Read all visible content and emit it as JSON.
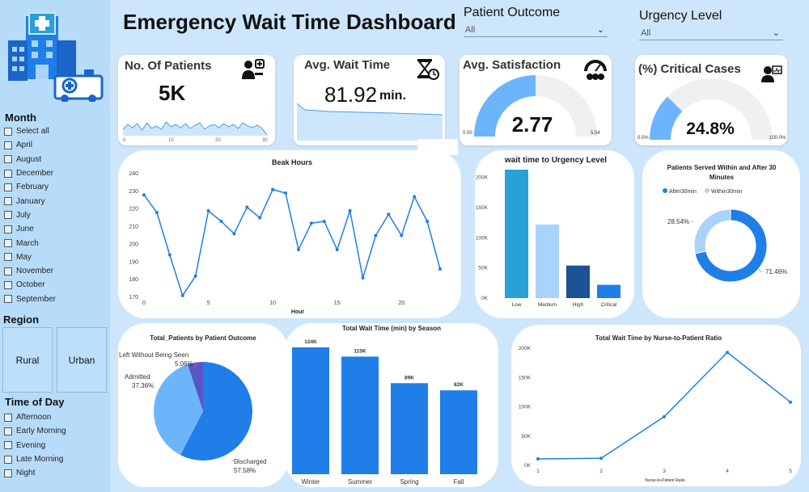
{
  "app": {
    "title": "Emergency Wait Time Dashboard"
  },
  "filters": {
    "patient_outcome": {
      "label": "Patient Outcome",
      "value": "All"
    },
    "urgency_level": {
      "label": "Urgency Level",
      "value": "All"
    }
  },
  "sidebar": {
    "month": {
      "title": "Month",
      "items": [
        "Select all",
        "April",
        "August",
        "December",
        "February",
        "January",
        "July",
        "June",
        "March",
        "May",
        "November",
        "October",
        "September"
      ]
    },
    "region": {
      "title": "Region",
      "items": [
        "Rural",
        "Urban"
      ]
    },
    "time_of_day": {
      "title": "Time of Day",
      "items": [
        "Afternoon",
        "Early Morning",
        "Evening",
        "Late Morning",
        "Night"
      ]
    }
  },
  "kpis": {
    "patients": {
      "label": "No. Of Patients",
      "value": "5K",
      "ticks": [
        "0",
        "10",
        "20",
        "30"
      ]
    },
    "wait_time": {
      "label": "Avg. Wait Time",
      "value": "81.92",
      "unit": "min."
    },
    "satisfaction": {
      "label": "Avg. Satisfaction",
      "value": "2.77",
      "min_label": "0.00",
      "max_label": "5.54",
      "fraction": 0.5
    },
    "critical": {
      "label": "(%) Critical Cases",
      "value": "24.8%",
      "min_label": "0.0%",
      "max_label": "100.0%",
      "fraction": 0.248
    }
  },
  "colors": {
    "blue_main": "#1f7ee8",
    "blue_light": "#6cb5fb",
    "blue_pale": "#a9d3fb",
    "navy": "#1b5394",
    "cyan": "#2aa0d8",
    "purple": "#5856c7",
    "gray": "#f0f0f0"
  },
  "chart_data": [
    {
      "id": "peak_hours",
      "type": "line",
      "title": "Beak Hours",
      "xlabel": "Hour",
      "ylabel": "",
      "x": [
        0,
        1,
        2,
        3,
        4,
        5,
        6,
        7,
        8,
        9,
        10,
        11,
        12,
        13,
        14,
        15,
        16,
        17,
        18,
        19,
        20,
        21,
        22,
        23
      ],
      "values": [
        228,
        218,
        194,
        171,
        182,
        219,
        213,
        206,
        221,
        215,
        231,
        229,
        197,
        212,
        213,
        197,
        219,
        181,
        205,
        217,
        205,
        227,
        213,
        186
      ],
      "ylim": [
        170,
        240
      ],
      "yticks": [
        "170",
        "180",
        "190",
        "200",
        "210",
        "220",
        "230",
        "240"
      ],
      "xticks": [
        "0",
        "5",
        "10",
        "15",
        "20"
      ]
    },
    {
      "id": "urgency",
      "type": "bar",
      "title": "wait time to Urgency Level",
      "categories": [
        "Low",
        "Medium",
        "High",
        "Critical"
      ],
      "values": [
        213000,
        122000,
        54000,
        22000
      ],
      "ylim": [
        0,
        225000
      ],
      "yticks": [
        "0K",
        "50K",
        "100K",
        "150K",
        "200K"
      ]
    },
    {
      "id": "served30",
      "type": "pie",
      "title": "Patients Served Within and After 30 Minutes",
      "legend": [
        "After30min",
        "Within30min"
      ],
      "values": [
        71.46,
        28.54
      ],
      "labels": [
        "71.46%",
        "28.54%"
      ]
    },
    {
      "id": "outcome",
      "type": "pie",
      "title": "Total_Patients by Patient Outcome",
      "categories": [
        "Discharged",
        "Admitted",
        "Left Without Being Seen"
      ],
      "values": [
        57.58,
        37.36,
        5.06
      ],
      "labels": [
        "57.58%",
        "37.36%",
        "5.06%"
      ]
    },
    {
      "id": "season",
      "type": "bar",
      "title": "Total Wait Time (min) by Season",
      "categories": [
        "Winter",
        "Summer",
        "Spring",
        "Fall"
      ],
      "values": [
        124000,
        115000,
        89000,
        82000
      ],
      "labels": [
        "124K",
        "115K",
        "89K",
        "82K"
      ],
      "ylim": [
        0,
        130000
      ]
    },
    {
      "id": "nurse_ratio",
      "type": "line",
      "title": "Total Wait Time by Nurse-to-Patient Ratio",
      "xlabel": "Nurse-to-Patient Ratio",
      "x": [
        1,
        2,
        3,
        4,
        5
      ],
      "values": [
        11000,
        12000,
        83000,
        193000,
        108000
      ],
      "ylim": [
        0,
        200000
      ],
      "yticks": [
        "0K",
        "50K",
        "100K",
        "150K",
        "200K"
      ],
      "xticks": [
        "1",
        "2",
        "3",
        "4",
        "5"
      ]
    }
  ]
}
